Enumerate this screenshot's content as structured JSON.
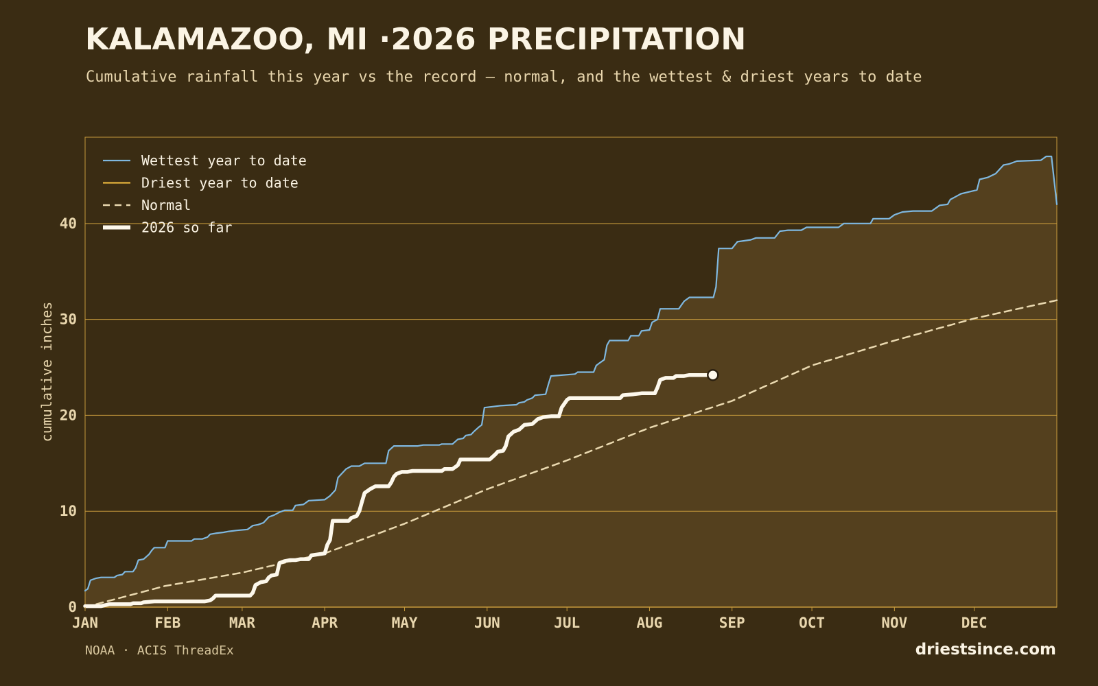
{
  "header": {
    "title": "KALAMAZOO, MI ·2026 PRECIPITATION",
    "subtitle": "Cumulative rainfall this year vs the record — normal, and the wettest & driest years to date"
  },
  "footer": {
    "source": "NOAA · ACIS ThreadEx",
    "brand": "driestsince.com"
  },
  "colors": {
    "background": "#3a2c13",
    "fill": "#54401e",
    "grid": "#c79a3c",
    "wettest": "#7fb8e0",
    "driest": "#e3b23c",
    "normal": "#ead9b0",
    "current": "#fdf8ec"
  },
  "chart_data": {
    "type": "line",
    "title": "KALAMAZOO, MI ·2026 PRECIPITATION",
    "subtitle": "Cumulative rainfall this year vs the record — normal, and the wettest & driest years to date",
    "xlabel": "",
    "ylabel": "cumulative inches",
    "x_unit": "day of year",
    "xlim": [
      1,
      366
    ],
    "ylim": [
      0,
      49
    ],
    "yticks": [
      0,
      10,
      20,
      30,
      40
    ],
    "xticks": [
      {
        "label": "JAN",
        "day": 1
      },
      {
        "label": "FEB",
        "day": 32
      },
      {
        "label": "MAR",
        "day": 60
      },
      {
        "label": "APR",
        "day": 91
      },
      {
        "label": "MAY",
        "day": 121
      },
      {
        "label": "JUN",
        "day": 152
      },
      {
        "label": "JUL",
        "day": 182
      },
      {
        "label": "AUG",
        "day": 213
      },
      {
        "label": "SEP",
        "day": 244
      },
      {
        "label": "OCT",
        "day": 274
      },
      {
        "label": "NOV",
        "day": 305
      },
      {
        "label": "DEC",
        "day": 335
      }
    ],
    "grid": true,
    "legend": "top-left",
    "series": [
      {
        "name": "Wettest year to date",
        "style": "solid",
        "points": [
          [
            1,
            1.7
          ],
          [
            2,
            1.9
          ],
          [
            3,
            2.8
          ],
          [
            5,
            3.0
          ],
          [
            7,
            3.1
          ],
          [
            10,
            3.1
          ],
          [
            12,
            3.1
          ],
          [
            13,
            3.3
          ],
          [
            15,
            3.4
          ],
          [
            16,
            3.7
          ],
          [
            19,
            3.7
          ],
          [
            20,
            4.1
          ],
          [
            21,
            4.9
          ],
          [
            23,
            5.0
          ],
          [
            25,
            5.5
          ],
          [
            26,
            5.9
          ],
          [
            27,
            6.2
          ],
          [
            31,
            6.2
          ],
          [
            32,
            6.9
          ],
          [
            41,
            6.9
          ],
          [
            42,
            7.1
          ],
          [
            45,
            7.1
          ],
          [
            47,
            7.3
          ],
          [
            48,
            7.6
          ],
          [
            50,
            7.7
          ],
          [
            53,
            7.8
          ],
          [
            55,
            7.9
          ],
          [
            58,
            8.0
          ],
          [
            62,
            8.1
          ],
          [
            64,
            8.5
          ],
          [
            66,
            8.6
          ],
          [
            68,
            8.8
          ],
          [
            70,
            9.4
          ],
          [
            72,
            9.6
          ],
          [
            74,
            9.9
          ],
          [
            76,
            10.1
          ],
          [
            79,
            10.1
          ],
          [
            80,
            10.6
          ],
          [
            83,
            10.7
          ],
          [
            85,
            11.1
          ],
          [
            91,
            11.2
          ],
          [
            93,
            11.6
          ],
          [
            95,
            12.2
          ],
          [
            96,
            13.5
          ],
          [
            99,
            14.4
          ],
          [
            101,
            14.7
          ],
          [
            104,
            14.7
          ],
          [
            106,
            15.0
          ],
          [
            114,
            15.0
          ],
          [
            115,
            16.3
          ],
          [
            117,
            16.8
          ],
          [
            126,
            16.8
          ],
          [
            128,
            16.9
          ],
          [
            134,
            16.9
          ],
          [
            135,
            17.0
          ],
          [
            139,
            17.0
          ],
          [
            141,
            17.5
          ],
          [
            143,
            17.6
          ],
          [
            144,
            17.9
          ],
          [
            146,
            18.0
          ],
          [
            147,
            18.3
          ],
          [
            149,
            18.8
          ],
          [
            150,
            19.0
          ],
          [
            151,
            20.8
          ],
          [
            154,
            20.9
          ],
          [
            157,
            21.0
          ],
          [
            163,
            21.1
          ],
          [
            164,
            21.3
          ],
          [
            166,
            21.4
          ],
          [
            167,
            21.6
          ],
          [
            169,
            21.8
          ],
          [
            170,
            22.1
          ],
          [
            174,
            22.2
          ],
          [
            175,
            23.2
          ],
          [
            176,
            24.1
          ],
          [
            185,
            24.3
          ],
          [
            186,
            24.5
          ],
          [
            192,
            24.5
          ],
          [
            193,
            25.2
          ],
          [
            194,
            25.4
          ],
          [
            196,
            25.8
          ],
          [
            197,
            27.3
          ],
          [
            198,
            27.8
          ],
          [
            205,
            27.8
          ],
          [
            206,
            28.3
          ],
          [
            209,
            28.3
          ],
          [
            210,
            28.8
          ],
          [
            213,
            28.9
          ],
          [
            214,
            29.7
          ],
          [
            216,
            30.0
          ],
          [
            217,
            31.1
          ],
          [
            224,
            31.1
          ],
          [
            225,
            31.5
          ],
          [
            226,
            31.9
          ],
          [
            228,
            32.3
          ],
          [
            237,
            32.3
          ],
          [
            238,
            33.4
          ],
          [
            239,
            37.4
          ],
          [
            244,
            37.4
          ],
          [
            246,
            38.1
          ],
          [
            251,
            38.3
          ],
          [
            253,
            38.5
          ],
          [
            260,
            38.5
          ],
          [
            262,
            39.2
          ],
          [
            265,
            39.3
          ],
          [
            270,
            39.3
          ],
          [
            272,
            39.6
          ],
          [
            284,
            39.6
          ],
          [
            286,
            40.0
          ],
          [
            296,
            40.0
          ],
          [
            297,
            40.5
          ],
          [
            303,
            40.5
          ],
          [
            305,
            40.9
          ],
          [
            308,
            41.2
          ],
          [
            312,
            41.3
          ],
          [
            319,
            41.3
          ],
          [
            322,
            41.9
          ],
          [
            325,
            42.0
          ],
          [
            326,
            42.5
          ],
          [
            328,
            42.8
          ],
          [
            330,
            43.1
          ],
          [
            333,
            43.3
          ],
          [
            336,
            43.5
          ],
          [
            337,
            44.6
          ],
          [
            340,
            44.8
          ],
          [
            343,
            45.2
          ],
          [
            345,
            45.8
          ],
          [
            346,
            46.1
          ],
          [
            348,
            46.2
          ],
          [
            351,
            46.5
          ],
          [
            360,
            46.6
          ],
          [
            362,
            47.0
          ],
          [
            364,
            47.0
          ],
          [
            366,
            42.0
          ]
        ]
      },
      {
        "name": "Driest year to date",
        "style": "solid",
        "points": []
      },
      {
        "name": "Normal",
        "style": "dashed",
        "points": [
          [
            1,
            0.0
          ],
          [
            31,
            2.2
          ],
          [
            60,
            3.6
          ],
          [
            91,
            5.6
          ],
          [
            121,
            8.7
          ],
          [
            152,
            12.3
          ],
          [
            182,
            15.3
          ],
          [
            213,
            18.7
          ],
          [
            244,
            21.5
          ],
          [
            274,
            25.2
          ],
          [
            305,
            27.8
          ],
          [
            335,
            30.1
          ],
          [
            366,
            32.0
          ]
        ]
      },
      {
        "name": "2026 so far",
        "style": "thick",
        "points": [
          [
            1,
            0.1
          ],
          [
            7,
            0.1
          ],
          [
            10,
            0.3
          ],
          [
            18,
            0.3
          ],
          [
            19,
            0.4
          ],
          [
            22,
            0.4
          ],
          [
            23,
            0.5
          ],
          [
            27,
            0.6
          ],
          [
            46,
            0.6
          ],
          [
            48,
            0.7
          ],
          [
            49,
            0.9
          ],
          [
            50,
            1.2
          ],
          [
            53,
            1.2
          ],
          [
            63,
            1.2
          ],
          [
            64,
            1.5
          ],
          [
            65,
            2.3
          ],
          [
            67,
            2.6
          ],
          [
            69,
            2.7
          ],
          [
            70,
            3.1
          ],
          [
            71,
            3.3
          ],
          [
            73,
            3.4
          ],
          [
            74,
            4.6
          ],
          [
            76,
            4.8
          ],
          [
            78,
            4.9
          ],
          [
            80,
            4.9
          ],
          [
            82,
            5.0
          ],
          [
            85,
            5.0
          ],
          [
            86,
            5.4
          ],
          [
            91,
            5.6
          ],
          [
            92,
            6.5
          ],
          [
            93,
            7.0
          ],
          [
            94,
            9.0
          ],
          [
            100,
            9.0
          ],
          [
            101,
            9.3
          ],
          [
            103,
            9.5
          ],
          [
            104,
            10.0
          ],
          [
            105,
            11.0
          ],
          [
            106,
            11.9
          ],
          [
            108,
            12.3
          ],
          [
            110,
            12.6
          ],
          [
            115,
            12.6
          ],
          [
            116,
            13.0
          ],
          [
            117,
            13.6
          ],
          [
            118,
            13.9
          ],
          [
            120,
            14.1
          ],
          [
            122,
            14.1
          ],
          [
            124,
            14.2
          ],
          [
            135,
            14.2
          ],
          [
            136,
            14.4
          ],
          [
            139,
            14.4
          ],
          [
            141,
            14.8
          ],
          [
            142,
            15.4
          ],
          [
            153,
            15.4
          ],
          [
            155,
            15.9
          ],
          [
            156,
            16.2
          ],
          [
            158,
            16.3
          ],
          [
            159,
            16.8
          ],
          [
            160,
            17.8
          ],
          [
            162,
            18.3
          ],
          [
            164,
            18.5
          ],
          [
            166,
            19.0
          ],
          [
            169,
            19.1
          ],
          [
            171,
            19.6
          ],
          [
            173,
            19.8
          ],
          [
            176,
            19.9
          ],
          [
            179,
            19.9
          ],
          [
            180,
            20.8
          ],
          [
            182,
            21.6
          ],
          [
            183,
            21.8
          ],
          [
            202,
            21.8
          ],
          [
            203,
            22.1
          ],
          [
            207,
            22.2
          ],
          [
            210,
            22.3
          ],
          [
            215,
            22.3
          ],
          [
            216,
            22.9
          ],
          [
            217,
            23.7
          ],
          [
            219,
            23.9
          ],
          [
            222,
            23.9
          ],
          [
            223,
            24.1
          ],
          [
            226,
            24.1
          ],
          [
            228,
            24.2
          ],
          [
            235,
            24.2
          ]
        ]
      }
    ]
  }
}
